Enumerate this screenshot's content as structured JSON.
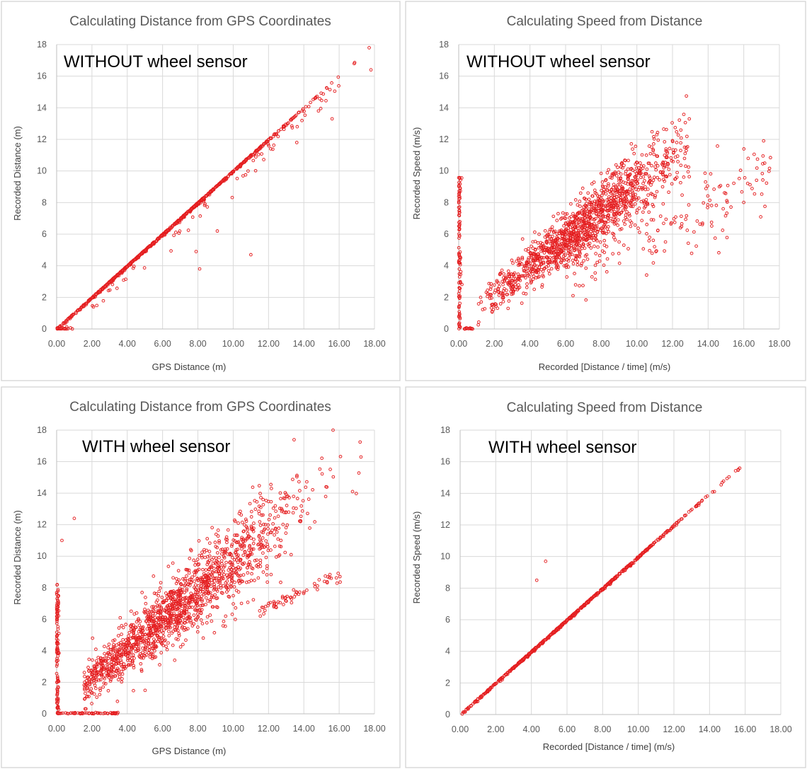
{
  "chart_data": [
    {
      "type": "scatter",
      "title": "Calculating Distance from GPS Coordinates",
      "annotation": "WITHOUT wheel sensor",
      "xlabel": "GPS Distance  (m)",
      "ylabel": "Recorded Distance  (m)",
      "xlim": [
        0,
        18
      ],
      "ylim": [
        0,
        18
      ],
      "xticks": [
        "0.00",
        "2.00",
        "4.00",
        "6.00",
        "8.00",
        "10.00",
        "12.00",
        "14.00",
        "16.00",
        "18.00"
      ],
      "yticks": [
        "0",
        "2",
        "4",
        "6",
        "8",
        "10",
        "12",
        "14",
        "16",
        "18"
      ],
      "grid": true,
      "accent": "#e31a1c",
      "series": [
        {
          "pattern": "y_equals_x",
          "x_range": [
            0,
            17.9
          ],
          "points": 700,
          "density_center": 6
        },
        {
          "pattern": "below_line_scatter",
          "x_range": [
            2,
            16
          ],
          "points": 60
        },
        {
          "pattern": "y_zero_cluster",
          "x_range": [
            0,
            0.9
          ],
          "points": 15
        }
      ],
      "outliers": [
        [
          11,
          4.7
        ],
        [
          8.1,
          3.8
        ],
        [
          7.9,
          4.9
        ],
        [
          9.1,
          6.2
        ],
        [
          15.6,
          13.3
        ],
        [
          13.6,
          11.8
        ],
        [
          17.8,
          16.4
        ],
        [
          17.7,
          17.8
        ]
      ]
    },
    {
      "type": "scatter",
      "title": "Calculating Speed from Distance",
      "annotation": "WITHOUT wheel sensor",
      "xlabel": "Recorded [Distance / time]  (m/s)",
      "ylabel": "Recorded Speed (m/s)",
      "xlim": [
        0,
        18
      ],
      "ylim": [
        0,
        18
      ],
      "xticks": [
        "0.00",
        "2.00",
        "4.00",
        "6.00",
        "8.00",
        "10.00",
        "12.00",
        "14.00",
        "16.00",
        "18.00"
      ],
      "yticks": [
        "0",
        "2",
        "4",
        "6",
        "8",
        "10",
        "12",
        "14",
        "16",
        "18"
      ],
      "grid": true,
      "accent": "#e31a1c",
      "series": [
        {
          "pattern": "band_around_y_equals_x",
          "x_range": [
            1,
            13
          ],
          "slope": 0.88,
          "spread": 0.9,
          "points": 1300,
          "density_center": 7
        },
        {
          "pattern": "lower_arm",
          "x_range": [
            6,
            17.5
          ],
          "slope": 0.5,
          "spread": 1.2,
          "points": 170
        },
        {
          "pattern": "x_zero_column",
          "y_range": [
            0,
            9.6
          ],
          "points": 100
        },
        {
          "pattern": "y_zero_cluster",
          "x_range": [
            0,
            0.9
          ],
          "points": 15
        }
      ],
      "outliers": []
    },
    {
      "type": "scatter",
      "title": "Calculating Distance from GPS Coordinates",
      "annotation": "WITH wheel sensor",
      "xlabel": "GPS Distance  (m)",
      "ylabel": "Recorded Distance  (m)",
      "xlim": [
        0,
        18
      ],
      "ylim": [
        0,
        18
      ],
      "xticks": [
        "0.00",
        "2.00",
        "4.00",
        "6.00",
        "8.00",
        "10.00",
        "12.00",
        "14.00",
        "16.00",
        "18.00"
      ],
      "yticks": [
        "0",
        "2",
        "4",
        "6",
        "8",
        "10",
        "12",
        "14",
        "16",
        "18"
      ],
      "grid": true,
      "accent": "#e31a1c",
      "series": [
        {
          "pattern": "band_around_y_equals_x",
          "x_range": [
            1.5,
            17.5
          ],
          "slope": 0.92,
          "spread": 1.1,
          "points": 1500,
          "density_center": 6.5
        },
        {
          "pattern": "lower_arm",
          "x_range": [
            11.5,
            16.3
          ],
          "slope": 0.5,
          "spread": 0.2,
          "points": 60
        },
        {
          "pattern": "x_zero_column",
          "y_range": [
            0,
            8.2
          ],
          "points": 110
        },
        {
          "pattern": "y_zero_cluster",
          "x_range": [
            0,
            3.5
          ],
          "points": 60
        }
      ],
      "outliers": [
        [
          1,
          12.4
        ],
        [
          0.3,
          11
        ]
      ]
    },
    {
      "type": "scatter",
      "title": "Calculating Speed from Distance",
      "annotation": "WITH wheel sensor",
      "xlabel": "Recorded [Distance  / time] (m/s)",
      "ylabel": "Recorded Speed (m/s)",
      "xlim": [
        0,
        18
      ],
      "ylim": [
        0,
        18
      ],
      "xticks": [
        "0.00",
        "2.00",
        "4.00",
        "6.00",
        "8.00",
        "10.00",
        "12.00",
        "14.00",
        "16.00",
        "18.00"
      ],
      "yticks": [
        "0",
        "2",
        "4",
        "6",
        "8",
        "10",
        "12",
        "14",
        "16",
        "18"
      ],
      "grid": true,
      "accent": "#e31a1c",
      "series": [
        {
          "pattern": "y_equals_x",
          "x_range": [
            0,
            16.4
          ],
          "points": 600,
          "density_center": 6
        }
      ],
      "outliers": [
        [
          4.3,
          8.5
        ],
        [
          4.8,
          9.7
        ]
      ]
    }
  ]
}
